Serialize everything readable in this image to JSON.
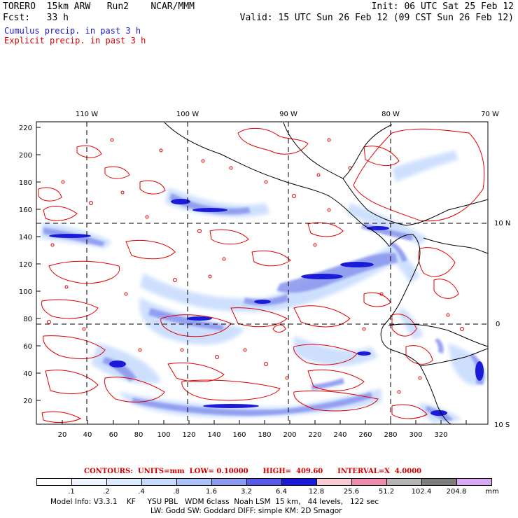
{
  "header": {
    "title_left": "TORERO  15km ARW   Run2    NCAR/MMM",
    "init": "Init: 06 UTC Sat 25 Feb 12",
    "fcst": "Fcst:   33 h",
    "valid": "Valid: 15 UTC Sun 26 Feb 12 (09 CST Sun 26 Feb 12)",
    "legend_cumulus": "Cumulus precip. in past 3 h",
    "legend_explicit": "Explicit precip. in past 3 h"
  },
  "map": {
    "lon_labels": [
      "110 W",
      "100 W",
      "90 W",
      "80 W",
      "70 W"
    ],
    "lat_labels": [
      "10 N",
      "0",
      "10 S"
    ],
    "y_ticks": [
      "220",
      "200",
      "180",
      "160",
      "140",
      "120",
      "100",
      "80",
      "60",
      "40",
      "20"
    ],
    "x_ticks": [
      "20",
      "40",
      "60",
      "80",
      "100",
      "120",
      "140",
      "160",
      "180",
      "200",
      "220",
      "240",
      "260",
      "280",
      "300",
      "320"
    ],
    "colors": {
      "contour": "#e00000",
      "coast": "#000000",
      "grid": "#000000"
    }
  },
  "contours_line": "CONTOURS:  UNITS=mm  LOW= 0.10000      HIGH=  409.60      INTERVAL=X  4.0000",
  "colorbar": {
    "labels": [
      ".1",
      ".2",
      ".4",
      ".8",
      "1.6",
      "3.2",
      "6.4",
      "12.8",
      "25.6",
      "51.2",
      "102.4",
      "204.8"
    ],
    "unit": "mm",
    "colors": [
      "#ffffff",
      "#eef4ff",
      "#dde9ff",
      "#c5dafd",
      "#a9c2f7",
      "#8c99ef",
      "#5a5ae8",
      "#1a1ad8",
      "#f7c9d0",
      "#ee8cb0",
      "#b4b4b4",
      "#7c7c7c",
      "#d8a8f0"
    ]
  },
  "footer": {
    "line1": "Model Info: V3.3.1    KF     YSU PBL   WDM 6class  Noah LSM  15 km,   44 levels,   122 sec",
    "line2": "LW: Godd SW: Goddard DIFF: simple KM: 2D Smagor"
  }
}
